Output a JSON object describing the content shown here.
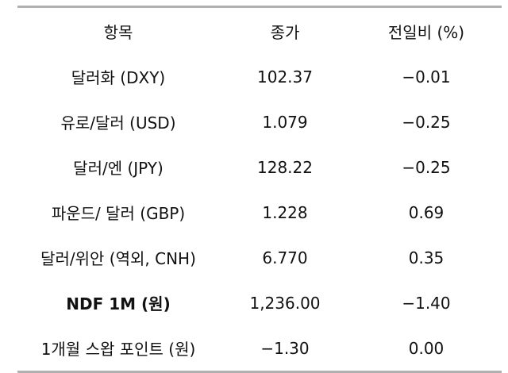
{
  "table": {
    "header": [
      "항목",
      "종가",
      "전일비 (%)"
    ],
    "rows": [
      [
        "달러화 (DXY)",
        "102.37",
        "−0.01"
      ],
      [
        "유로/달러 (USD)",
        "1.079",
        "−0.25"
      ],
      [
        "달러/엔 (JPY)",
        "128.22",
        "−0.25"
      ],
      [
        "파운드/ 달러 (GBP)",
        "1.228",
        "0.69"
      ],
      [
        "달러/위안 (역외, CNH)",
        "6.770",
        "0.35"
      ],
      [
        "NDF 1M (원)",
        "1,236.00",
        "−1.40"
      ],
      [
        "1개월 스왑 포인트 (원)",
        "−1.30",
        "0.00"
      ]
    ]
  }
}
